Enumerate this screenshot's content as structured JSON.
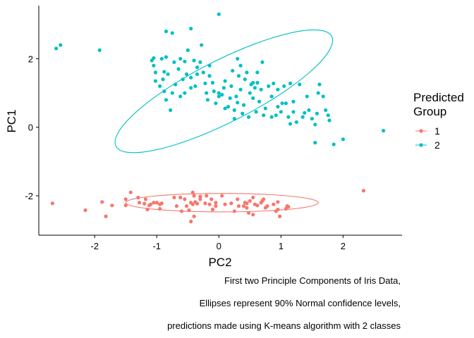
{
  "chart_data": {
    "type": "scatter",
    "xlabel": "PC2",
    "ylabel": "PC1",
    "xlim": [
      -2.9,
      2.95
    ],
    "ylim": [
      -3.15,
      3.55
    ],
    "x_ticks": [
      -2,
      -1,
      0,
      1,
      2
    ],
    "y_ticks": [
      -2,
      0,
      2
    ],
    "grid": false,
    "legend": {
      "title_lines": [
        "Predicted",
        "Group"
      ],
      "position": "right",
      "entries": [
        {
          "label": "1",
          "color": "#F8766D"
        },
        {
          "label": "2",
          "color": "#00BFC4"
        }
      ]
    },
    "caption": [
      "First two Principle Components of Iris Data,",
      "Ellipses represent 90% Normal confidence levels,",
      "predictions made using K-means algorithm with 2 classes"
    ],
    "series": [
      {
        "group": "1",
        "color": "#F8766D",
        "ellipse": {
          "cx": 0.05,
          "cy": -2.2,
          "rx": 1.55,
          "ry": 0.27,
          "angle_deg": 0
        },
        "points": [
          [
            -2.68,
            -2.22
          ],
          [
            -2.15,
            -2.42
          ],
          [
            -1.88,
            -2.18
          ],
          [
            -1.82,
            -2.6
          ],
          [
            -1.72,
            -2.28
          ],
          [
            -1.5,
            -2.1
          ],
          [
            -1.5,
            -2.28
          ],
          [
            -1.42,
            -1.9
          ],
          [
            -1.3,
            -2.05
          ],
          [
            -1.28,
            -2.2
          ],
          [
            -1.2,
            -2.23
          ],
          [
            -1.18,
            -2.1
          ],
          [
            -1.15,
            -2.4
          ],
          [
            -1.12,
            -2.28
          ],
          [
            -1.1,
            -2.25
          ],
          [
            -1.05,
            -2.2
          ],
          [
            -0.95,
            -2.25
          ],
          [
            -0.92,
            -2.22
          ],
          [
            -0.72,
            -2.05
          ],
          [
            -0.68,
            -2.3
          ],
          [
            -0.62,
            -2.05
          ],
          [
            -0.6,
            -2.45
          ],
          [
            -0.55,
            -2.1
          ],
          [
            -0.52,
            -2.3
          ],
          [
            -0.48,
            -2.42
          ],
          [
            -0.45,
            -2.2
          ],
          [
            -0.42,
            -2.25
          ],
          [
            -0.4,
            -2.0
          ],
          [
            -0.38,
            -2.18
          ],
          [
            -0.42,
            -1.9
          ],
          [
            -0.4,
            -2.6
          ],
          [
            -0.35,
            -2.23
          ],
          [
            -0.3,
            -2.1
          ],
          [
            -0.22,
            -2.22
          ],
          [
            -0.2,
            -2.0
          ],
          [
            -0.15,
            -2.25
          ],
          [
            -0.12,
            -2.1
          ],
          [
            -0.05,
            -2.3
          ],
          [
            -0.05,
            -2.2
          ],
          [
            0.05,
            -2.0
          ],
          [
            0.1,
            -2.25
          ],
          [
            0.2,
            -2.22
          ],
          [
            0.25,
            -2.45
          ],
          [
            0.32,
            -2.3
          ],
          [
            0.4,
            -2.3
          ],
          [
            0.42,
            -2.2
          ],
          [
            0.45,
            -2.35
          ],
          [
            0.48,
            -2.5
          ],
          [
            0.5,
            -2.15
          ],
          [
            0.55,
            -2.05
          ],
          [
            0.58,
            -2.25
          ],
          [
            0.62,
            -2.28
          ],
          [
            0.68,
            -2.2
          ],
          [
            0.72,
            -2.1
          ],
          [
            0.75,
            -2.35
          ],
          [
            0.78,
            -2.3
          ],
          [
            0.88,
            -2.25
          ],
          [
            0.92,
            -2.45
          ],
          [
            0.95,
            -2.4
          ],
          [
            0.95,
            -2.18
          ],
          [
            0.45,
            -2.22
          ],
          [
            -0.95,
            -2.38
          ],
          [
            -0.3,
            -2.02
          ],
          [
            1.1,
            -2.3
          ],
          [
            -1.0,
            -2.2
          ],
          [
            -0.1,
            -2.4
          ],
          [
            0.3,
            -2.1
          ],
          [
            0.55,
            -2.55
          ],
          [
            0.98,
            -2.6
          ],
          [
            1.12,
            -2.32
          ],
          [
            1.08,
            -2.38
          ],
          [
            2.33,
            -1.85
          ],
          [
            -0.45,
            -2.75
          ],
          [
            0.7,
            -2.15
          ]
        ]
      },
      {
        "group": "2",
        "color": "#00BFC4",
        "ellipse": {
          "cx": 0.08,
          "cy": 1.05,
          "rx": 1.95,
          "ry": 0.9,
          "angle_deg": -27
        },
        "points": [
          [
            -2.62,
            2.3
          ],
          [
            -2.55,
            2.4
          ],
          [
            -1.92,
            2.25
          ],
          [
            -0.85,
            2.8
          ],
          [
            -0.75,
            2.75
          ],
          [
            -0.45,
            2.88
          ],
          [
            0.0,
            3.3
          ],
          [
            -0.28,
            2.4
          ],
          [
            -0.5,
            2.25
          ],
          [
            -0.85,
            2.05
          ],
          [
            -0.92,
            2.0
          ],
          [
            -0.88,
            1.62
          ],
          [
            -0.9,
            1.4
          ],
          [
            -1.08,
            1.95
          ],
          [
            -1.02,
            1.6
          ],
          [
            -1.05,
            1.8
          ],
          [
            -1.02,
            1.35
          ],
          [
            -0.95,
            1.2
          ],
          [
            -0.88,
            1.05
          ],
          [
            -0.85,
            0.8
          ],
          [
            -0.78,
            0.5
          ],
          [
            -0.75,
            1.0
          ],
          [
            -0.7,
            1.25
          ],
          [
            -0.65,
            1.7
          ],
          [
            -0.62,
            2.0
          ],
          [
            -0.58,
            1.4
          ],
          [
            -0.55,
            1.92
          ],
          [
            -0.52,
            1.55
          ],
          [
            -0.45,
            1.45
          ],
          [
            -0.4,
            1.95
          ],
          [
            -0.38,
            1.2
          ],
          [
            -0.35,
            1.55
          ],
          [
            -0.3,
            1.9
          ],
          [
            -0.25,
            1.6
          ],
          [
            -0.22,
            1.28
          ],
          [
            -0.2,
            1.0
          ],
          [
            -0.18,
            0.8
          ],
          [
            -0.15,
            1.5
          ],
          [
            -0.1,
            1.3
          ],
          [
            -0.08,
            1.05
          ],
          [
            -0.05,
            0.7
          ],
          [
            0.0,
            0.9
          ],
          [
            0.05,
            0.95
          ],
          [
            0.08,
            1.15
          ],
          [
            0.1,
            1.35
          ],
          [
            0.15,
            0.6
          ],
          [
            0.18,
            0.85
          ],
          [
            0.2,
            1.2
          ],
          [
            0.22,
            1.65
          ],
          [
            0.25,
            0.5
          ],
          [
            0.28,
            0.9
          ],
          [
            0.3,
            0.72
          ],
          [
            0.32,
            1.5
          ],
          [
            0.35,
            1.1
          ],
          [
            0.38,
            0.4
          ],
          [
            0.4,
            0.65
          ],
          [
            0.42,
            1.4
          ],
          [
            0.45,
            1.6
          ],
          [
            0.48,
            0.3
          ],
          [
            0.5,
            1.0
          ],
          [
            0.52,
            1.25
          ],
          [
            0.55,
            0.85
          ],
          [
            0.58,
            1.15
          ],
          [
            0.6,
            0.45
          ],
          [
            0.62,
            1.3
          ],
          [
            0.65,
            0.75
          ],
          [
            0.68,
            1.1
          ],
          [
            0.72,
            0.35
          ],
          [
            0.75,
            0.55
          ],
          [
            0.8,
            1.2
          ],
          [
            0.85,
            0.9
          ],
          [
            0.88,
            1.28
          ],
          [
            0.92,
            0.35
          ],
          [
            0.95,
            0.6
          ],
          [
            1.0,
            0.45
          ],
          [
            1.05,
            1.2
          ],
          [
            1.08,
            0.7
          ],
          [
            1.12,
            0.3
          ],
          [
            1.15,
            0.1
          ],
          [
            1.2,
            0.45
          ],
          [
            1.25,
            0.15
          ],
          [
            1.3,
            1.25
          ],
          [
            1.35,
            0.3
          ],
          [
            1.38,
            0.42
          ],
          [
            1.42,
            0.9
          ],
          [
            1.45,
            0.5
          ],
          [
            1.5,
            0.25
          ],
          [
            1.55,
            0.08
          ],
          [
            1.6,
            1.0
          ],
          [
            1.62,
            1.25
          ],
          [
            1.68,
            0.9
          ],
          [
            1.72,
            0.5
          ],
          [
            1.76,
            0.35
          ],
          [
            1.78,
            0.2
          ],
          [
            1.55,
            -0.45
          ],
          [
            1.85,
            -0.5
          ],
          [
            2.0,
            -0.35
          ],
          [
            2.65,
            -0.1
          ],
          [
            0.7,
            1.9
          ],
          [
            0.3,
            2.0
          ],
          [
            -0.15,
            1.8
          ],
          [
            -0.72,
            1.9
          ],
          [
            -0.35,
            1.75
          ],
          [
            0.55,
            1.3
          ],
          [
            1.02,
            0.7
          ],
          [
            0.1,
            0.55
          ],
          [
            -0.55,
            1.0
          ],
          [
            1.15,
            1.28
          ],
          [
            0.25,
            0.25
          ],
          [
            -0.62,
            0.9
          ],
          [
            0.35,
            1.8
          ],
          [
            0.85,
            0.3
          ],
          [
            1.58,
            0.4
          ],
          [
            -1.05,
            2.02
          ],
          [
            0.95,
            1.1
          ],
          [
            0.0,
            1.0
          ],
          [
            -0.45,
            1.15
          ],
          [
            0.62,
            1.6
          ],
          [
            -0.82,
            1.55
          ],
          [
            1.2,
            0.75
          ]
        ]
      }
    ]
  }
}
